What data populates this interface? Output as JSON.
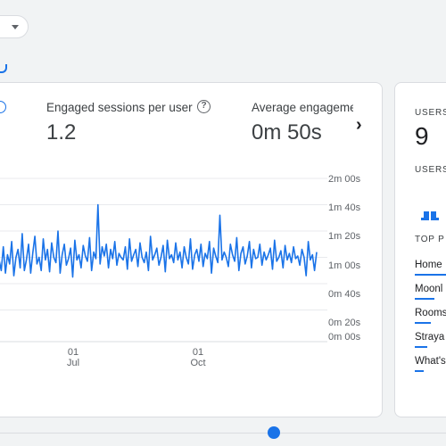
{
  "toolbar": {
    "dropdown_icon": "caret-down-icon"
  },
  "metrics": [
    {
      "label": "Engaged sessions per user",
      "value": "1.2"
    },
    {
      "label": "Average engagement time",
      "value": "0m 50s"
    }
  ],
  "side_card": {
    "users_label": "USERS",
    "users_value": "9",
    "users_label_2": "USERS",
    "top_label": "TOP P",
    "pages": [
      "Home",
      "Moonl",
      "Rooms",
      "Straya",
      "What's"
    ]
  },
  "colors": {
    "accent": "#1a73e8",
    "grid": "#e8eaed"
  },
  "chart_data": {
    "type": "line",
    "y_ticks": [
      "2m 00s",
      "1m 40s",
      "1m 20s",
      "1m 00s",
      "0m 40s",
      "0m 20s",
      "0m 00s"
    ],
    "y_tick_seconds": [
      120,
      100,
      80,
      60,
      40,
      20,
      0
    ],
    "x_ticks": [
      {
        "day": "01",
        "month": "Jul"
      },
      {
        "day": "01",
        "month": "Oct"
      }
    ],
    "series": [
      {
        "values": [
          58,
          50,
          68,
          48,
          62,
          55,
          72,
          46,
          60,
          66,
          52,
          78,
          50,
          58,
          70,
          48,
          63,
          76,
          55,
          60,
          50,
          74,
          58,
          66,
          49,
          71,
          60,
          56,
          80,
          48,
          62,
          70,
          54,
          59,
          67,
          45,
          73,
          58,
          62,
          52,
          69,
          61,
          57,
          75,
          50,
          64,
          59,
          100,
          55,
          68,
          61,
          70,
          52,
          66,
          59,
          72,
          54,
          63,
          60,
          58,
          68,
          51,
          74,
          57,
          62,
          66,
          53,
          71,
          60,
          56,
          64,
          50,
          76,
          58,
          62,
          67,
          54,
          60,
          69,
          49,
          73,
          59,
          62,
          56,
          71,
          58,
          64,
          52,
          68,
          60,
          55,
          74,
          51,
          62,
          66,
          57,
          70,
          53,
          63,
          59,
          72,
          48,
          67,
          61,
          56,
          92,
          58,
          64,
          60,
          53,
          70,
          62,
          57,
          75,
          50,
          63,
          68,
          55,
          61,
          72,
          52,
          66,
          59,
          60,
          70,
          54,
          64,
          58,
          62,
          67,
          51,
          73,
          57,
          60,
          65,
          52,
          69,
          58,
          63,
          56,
          68,
          59,
          61,
          54,
          66,
          60,
          46,
          72,
          58,
          62,
          50,
          64
        ]
      }
    ],
    "ylim": [
      0,
      120
    ],
    "grid": true
  }
}
